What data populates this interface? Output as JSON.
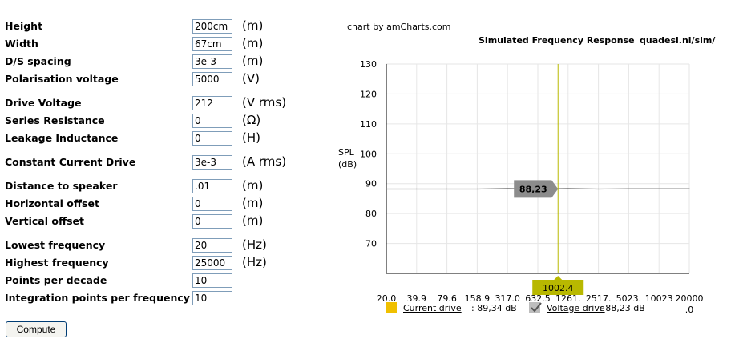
{
  "form": {
    "rows": [
      {
        "label": "Height",
        "value": "200cm",
        "unit": "(m)"
      },
      {
        "label": "Width",
        "value": "67cm",
        "unit": "(m)"
      },
      {
        "label": "D/S spacing",
        "value": "3e-3",
        "unit": "(m)"
      },
      {
        "label": "Polarisation voltage",
        "value": "5000",
        "unit": "(V)"
      },
      {
        "label": "Drive Voltage",
        "value": "212",
        "unit": "(V rms)"
      },
      {
        "label": "Series Resistance",
        "value": "0",
        "unit": "(Ω)"
      },
      {
        "label": "Leakage Inductance",
        "value": "0",
        "unit": "(H)"
      },
      {
        "label": "Constant Current Drive",
        "value": "3e-3",
        "unit": "(A rms)"
      },
      {
        "label": "Distance to speaker",
        "value": ".01",
        "unit": "(m)"
      },
      {
        "label": "Horizontal offset",
        "value": "0",
        "unit": "(m)"
      },
      {
        "label": "Vertical offset",
        "value": "0",
        "unit": "(m)"
      },
      {
        "label": "Lowest frequency",
        "value": "20",
        "unit": "(Hz)"
      },
      {
        "label": "Highest frequency",
        "value": "25000",
        "unit": "(Hz)"
      },
      {
        "label": "Points per decade",
        "value": "10",
        "unit": ""
      },
      {
        "label": "Integration points per frequency",
        "value": "10",
        "unit": ""
      }
    ],
    "compute_label": "Compute"
  },
  "chart_header": {
    "credit": "chart by amCharts.com",
    "site": "quadesl.nl/sim/"
  },
  "colors": {
    "current_drive": "#f0c000",
    "voltage_drive": "#888888",
    "cursor": "#b8b800",
    "balloon": "#8c8c8c"
  },
  "chart_data": {
    "type": "line",
    "title": "Simulated Frequency Response",
    "ylabel": [
      "SPL",
      "(dB)"
    ],
    "ylim": [
      60,
      130
    ],
    "yticks": [
      70,
      80,
      90,
      100,
      110,
      120,
      130
    ],
    "x_tick_labels": [
      "20.0",
      "39.9",
      "79.6",
      "158.9",
      "317.0",
      "632.5",
      "1261.",
      "2517.",
      "5023.",
      "10023",
      "20000"
    ],
    "x_tick_labels_line2": [
      "",
      "",
      "",
      "",
      "",
      "",
      "",
      "",
      "",
      "",
      ".0"
    ],
    "x": [
      20.0,
      39.9,
      79.6,
      158.9,
      317.0,
      632.5,
      1261,
      2517,
      5023,
      10023,
      20000
    ],
    "grid": true,
    "series": [
      {
        "name": "Voltage drive",
        "values": [
          88.2,
          88.2,
          88.2,
          88.2,
          88.4,
          88.2,
          88.4,
          88.2,
          88.3,
          88.3,
          88.3
        ]
      }
    ],
    "cursor": {
      "x_label": "1002.4",
      "value_label": "88,23"
    },
    "legend": [
      {
        "name": "Current drive",
        "value": ": 89,34 dB",
        "swatch": "square",
        "checked": false
      },
      {
        "name": "Voltage drive",
        "value": ": 88,23 dB",
        "swatch": "check",
        "checked": true
      }
    ]
  }
}
